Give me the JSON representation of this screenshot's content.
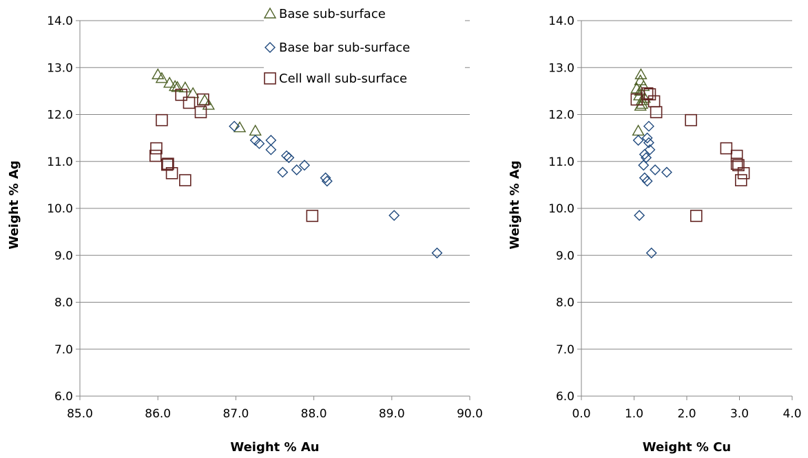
{
  "colors": {
    "base": "#4f6228",
    "bar": "#1f497d",
    "wall": "#632523",
    "grid": "#868686",
    "axis": "#868686"
  },
  "legend": [
    {
      "label": "Base sub-surface",
      "marker": "triangle",
      "color": "#4f6228"
    },
    {
      "label": "Base bar sub-surface",
      "marker": "diamond",
      "color": "#1f497d"
    },
    {
      "label": "Cell wall sub-surface",
      "marker": "square",
      "color": "#632523"
    }
  ],
  "chart_data": [
    {
      "type": "scatter",
      "xlabel": "Weight % Au",
      "ylabel": "Weight % Ag",
      "xlim": [
        85.0,
        90.0
      ],
      "ylim": [
        6.0,
        14.0
      ],
      "xticks": [
        "85.0",
        "86.0",
        "87.0",
        "88.0",
        "89.0",
        "90.0"
      ],
      "yticks": [
        "6.0",
        "7.0",
        "8.0",
        "9.0",
        "10.0",
        "11.0",
        "12.0",
        "13.0",
        "14.0"
      ],
      "grid": "horizontal",
      "legend_position": "top-right",
      "series": [
        {
          "name": "Base sub-surface",
          "marker": "triangle",
          "points": [
            [
              86.0,
              12.85
            ],
            [
              86.05,
              12.77
            ],
            [
              86.15,
              12.67
            ],
            [
              86.22,
              12.6
            ],
            [
              86.25,
              12.58
            ],
            [
              86.35,
              12.57
            ],
            [
              86.45,
              12.45
            ],
            [
              86.6,
              12.3
            ],
            [
              86.65,
              12.2
            ],
            [
              87.05,
              11.72
            ],
            [
              87.25,
              11.65
            ]
          ]
        },
        {
          "name": "Base bar sub-surface",
          "marker": "diamond",
          "points": [
            [
              86.98,
              11.75
            ],
            [
              87.25,
              11.45
            ],
            [
              87.3,
              11.38
            ],
            [
              87.45,
              11.45
            ],
            [
              87.45,
              11.25
            ],
            [
              87.6,
              10.77
            ],
            [
              87.65,
              11.12
            ],
            [
              87.68,
              11.08
            ],
            [
              87.78,
              10.82
            ],
            [
              87.88,
              10.92
            ],
            [
              88.15,
              10.65
            ],
            [
              88.17,
              10.58
            ],
            [
              89.03,
              9.85
            ],
            [
              89.58,
              9.05
            ]
          ]
        },
        {
          "name": "Cell wall sub-surface",
          "marker": "square",
          "points": [
            [
              86.3,
              12.42
            ],
            [
              86.4,
              12.25
            ],
            [
              86.55,
              12.05
            ],
            [
              86.58,
              12.32
            ],
            [
              86.05,
              11.88
            ],
            [
              85.98,
              11.28
            ],
            [
              85.97,
              11.12
            ],
            [
              86.13,
              10.95
            ],
            [
              86.12,
              10.93
            ],
            [
              86.18,
              10.75
            ],
            [
              86.35,
              10.6
            ],
            [
              87.98,
              9.84
            ]
          ]
        }
      ]
    },
    {
      "type": "scatter",
      "xlabel": "Weight % Cu",
      "ylabel": "Weight % Ag",
      "xlim": [
        0.0,
        4.0
      ],
      "ylim": [
        6.0,
        14.0
      ],
      "xticks": [
        "0.0",
        "1.0",
        "2.0",
        "3.0",
        "4.0"
      ],
      "yticks": [
        "6.0",
        "7.0",
        "8.0",
        "9.0",
        "10.0",
        "11.0",
        "12.0",
        "13.0",
        "14.0"
      ],
      "grid": "horizontal",
      "series": [
        {
          "name": "Base sub-surface",
          "marker": "triangle",
          "points": [
            [
              1.13,
              12.85
            ],
            [
              1.12,
              12.72
            ],
            [
              1.18,
              12.6
            ],
            [
              1.05,
              12.55
            ],
            [
              1.12,
              12.5
            ],
            [
              1.1,
              12.4
            ],
            [
              1.2,
              12.35
            ],
            [
              1.15,
              12.3
            ],
            [
              1.15,
              12.22
            ],
            [
              1.12,
              12.18
            ],
            [
              1.08,
              11.65
            ]
          ]
        },
        {
          "name": "Base bar sub-surface",
          "marker": "diamond",
          "points": [
            [
              1.28,
              11.75
            ],
            [
              1.25,
              11.5
            ],
            [
              1.28,
              11.4
            ],
            [
              1.08,
              11.45
            ],
            [
              1.3,
              11.25
            ],
            [
              1.2,
              11.15
            ],
            [
              1.23,
              11.08
            ],
            [
              1.18,
              10.92
            ],
            [
              1.4,
              10.82
            ],
            [
              1.62,
              10.77
            ],
            [
              1.2,
              10.65
            ],
            [
              1.25,
              10.58
            ],
            [
              1.1,
              9.85
            ],
            [
              1.33,
              9.05
            ]
          ]
        },
        {
          "name": "Cell wall sub-surface",
          "marker": "square",
          "points": [
            [
              1.25,
              12.45
            ],
            [
              1.3,
              12.43
            ],
            [
              1.05,
              12.32
            ],
            [
              1.38,
              12.28
            ],
            [
              1.42,
              12.05
            ],
            [
              2.08,
              11.88
            ],
            [
              2.75,
              11.28
            ],
            [
              2.95,
              11.12
            ],
            [
              2.95,
              10.95
            ],
            [
              2.98,
              10.92
            ],
            [
              3.08,
              10.75
            ],
            [
              3.03,
              10.6
            ],
            [
              2.18,
              9.84
            ]
          ]
        }
      ]
    }
  ]
}
